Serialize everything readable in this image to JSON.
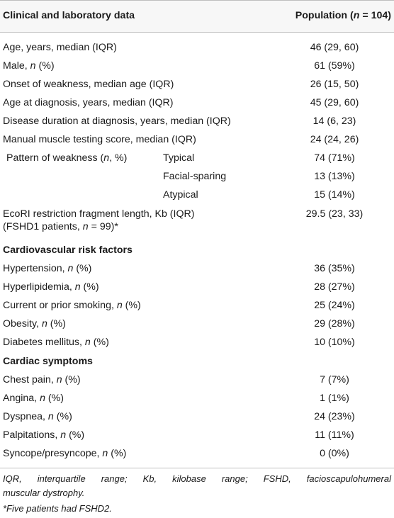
{
  "header": {
    "left": "Clinical and laboratory data",
    "right_prefix": "Population (",
    "right_n": "n",
    "right_suffix": " = 104)"
  },
  "rows": [
    {
      "label": "Age, years, median (IQR)",
      "value": "46 (29, 60)"
    },
    {
      "label_pre": "Male, ",
      "label_it": "n",
      "label_post": " (%)",
      "value": "61 (59%)"
    },
    {
      "label": "Onset of weakness, median age (IQR)",
      "value": "26 (15, 50)"
    },
    {
      "label": "Age at diagnosis, years, median (IQR)",
      "value": "45 (29, 60)"
    },
    {
      "label": "Disease duration at diagnosis, years, median (IQR)",
      "value": "14 (6, 23)"
    },
    {
      "label": "Manual muscle testing score, median (IQR)",
      "value": "24 (24, 26)"
    }
  ],
  "pattern": {
    "label_pre": "Pattern of weakness (",
    "label_it": "n",
    "label_post": ", %)",
    "items": [
      {
        "sub": "Typical",
        "value": "74 (71%)"
      },
      {
        "sub": "Facial-sparing",
        "value": "13 (13%)"
      },
      {
        "sub": "Atypical",
        "value": "15 (14%)"
      }
    ]
  },
  "ecori": {
    "line1": "EcoRI restriction fragment length, Kb (IQR)",
    "line2_pre": "(FSHD1 patients, ",
    "line2_it": "n",
    "line2_post": " = 99)*",
    "value": "29.5 (23, 33)"
  },
  "cardio": {
    "title": "Cardiovascular risk factors",
    "rows": [
      {
        "pre": "Hypertension, ",
        "post": " (%)",
        "value": "36 (35%)"
      },
      {
        "pre": "Hyperlipidemia, ",
        "post": " (%)",
        "value": "28 (27%)"
      },
      {
        "pre": "Current or prior smoking, ",
        "post": " (%)",
        "value": "25 (24%)"
      },
      {
        "pre": "Obesity, ",
        "post": " (%)",
        "value": "29 (28%)"
      },
      {
        "pre": "Diabetes mellitus, ",
        "post": " (%)",
        "value": "10 (10%)"
      }
    ]
  },
  "cardiac": {
    "title": "Cardiac symptoms",
    "rows": [
      {
        "pre": "Chest pain, ",
        "post": " (%)",
        "value": "7 (7%)"
      },
      {
        "pre": "Angina, ",
        "post": " (%)",
        "value": "1 (1%)"
      },
      {
        "pre": "Dyspnea, ",
        "post": " (%)",
        "value": "24 (23%)"
      },
      {
        "pre": "Palpitations, ",
        "post": " (%)",
        "value": "11 (11%)"
      },
      {
        "pre": "Syncope/presyncope, ",
        "post": " (%)",
        "value": "0 (0%)"
      }
    ]
  },
  "n_symbol": "n",
  "footnotes": {
    "line1": "IQR, interquartile range; Kb, kilobase range; FSHD, facioscapulohumeral",
    "line1b": "muscular dystrophy.",
    "line2": "*Five patients had FSHD2."
  }
}
